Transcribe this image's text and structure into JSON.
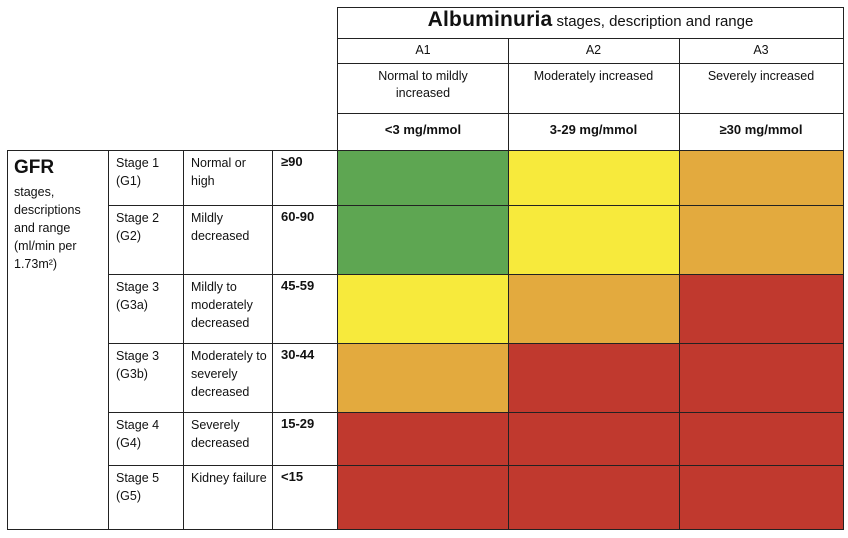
{
  "albuminuria": {
    "title_bold": "Albuminuria",
    "title_rest": " stages, description and range",
    "stages": [
      {
        "code": "A1",
        "description": "Normal to mildly increased",
        "range": "<3 mg/mmol"
      },
      {
        "code": "A2",
        "description": "Moderately increased",
        "range": "3-29 mg/mmol"
      },
      {
        "code": "A3",
        "description": "Severely increased",
        "range": "≥30 mg/mmol"
      }
    ]
  },
  "gfr": {
    "title": "GFR",
    "description": "stages, descriptions and range (ml/min per 1.73m²)",
    "stages": [
      {
        "stage": "Stage 1 (G1)",
        "description": "Normal or high",
        "range": "≥90"
      },
      {
        "stage": "Stage 2 (G2)",
        "description": "Mildly decreased",
        "range": "60-90"
      },
      {
        "stage": "Stage 3 (G3a)",
        "description": "Mildly to moderately decreased",
        "range": "45-59"
      },
      {
        "stage": "Stage 3 (G3b)",
        "description": "Moderately to severely decreased",
        "range": "30-44"
      },
      {
        "stage": "Stage 4 (G4)",
        "description": "Severely decreased",
        "range": "15-29"
      },
      {
        "stage": "Stage 5 (G5)",
        "description": "Kidney failure",
        "range": "<15"
      }
    ]
  },
  "risk_colors": {
    "green": "#5ea652",
    "yellow": "#f7ea3c",
    "orange": "#e3aa3e",
    "red": "#c0392e"
  },
  "risk_grid": [
    [
      "green",
      "yellow",
      "orange"
    ],
    [
      "green",
      "yellow",
      "orange"
    ],
    [
      "yellow",
      "orange",
      "red"
    ],
    [
      "orange",
      "red",
      "red"
    ],
    [
      "red",
      "red",
      "red"
    ],
    [
      "red",
      "red",
      "red"
    ]
  ]
}
